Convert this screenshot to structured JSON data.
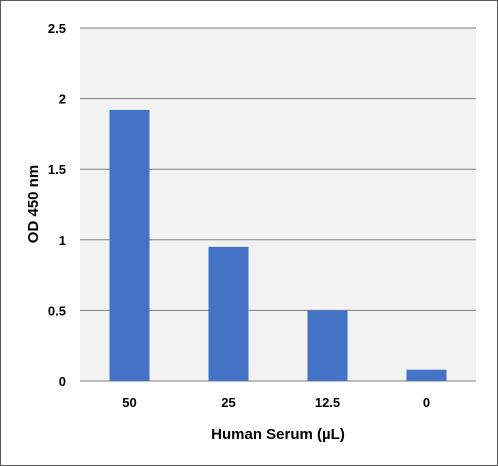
{
  "chart_data": {
    "type": "bar",
    "title": "",
    "xlabel": "Human Serum (µL)",
    "ylabel": "OD 450 nm",
    "categories": [
      "50",
      "25",
      "12.5",
      "0"
    ],
    "values": [
      1.92,
      0.95,
      0.5,
      0.08
    ],
    "ylim": [
      0,
      2.5
    ],
    "yticks": [
      "0",
      "0.5",
      "1",
      "1.5",
      "2",
      "2.5"
    ],
    "grid": true,
    "legend": "none"
  },
  "colors": {
    "bar": "#4472C4",
    "plot_background": "#F2F2F2",
    "gridline": "#808080",
    "frame": "#595959"
  }
}
